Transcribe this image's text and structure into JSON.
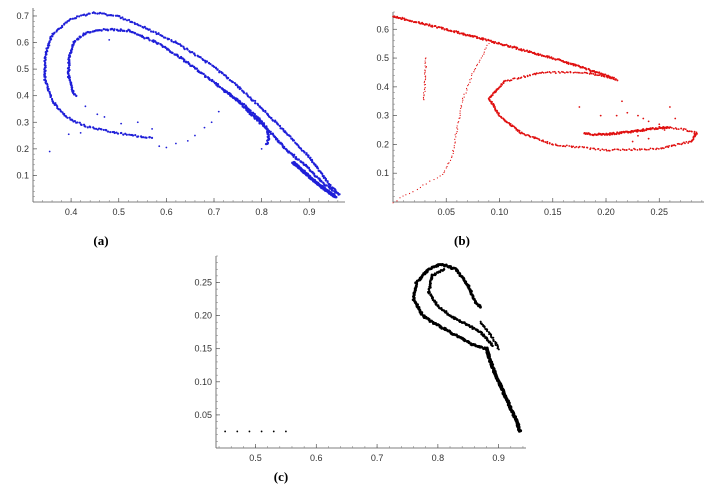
{
  "chart_data": [
    {
      "type": "scatter",
      "panel_label": "(a)",
      "title": "",
      "xlabel": "",
      "ylabel": "",
      "color": "#1f1fd8",
      "xlim": [
        0.32,
        0.975
      ],
      "ylim": [
        0.0,
        0.73
      ],
      "x_ticks": [
        0.4,
        0.5,
        0.6,
        0.7,
        0.8,
        0.9
      ],
      "x_tick_labels": [
        "0.4",
        "0.5",
        "0.6",
        "0.7",
        "0.8",
        "0.9"
      ],
      "y_ticks": [
        0.1,
        0.2,
        0.3,
        0.4,
        0.5,
        0.6,
        0.7
      ],
      "y_tick_labels": [
        "0.1",
        "0.2",
        "0.3",
        "0.4",
        "0.5",
        "0.6",
        "0.7"
      ],
      "grid": false,
      "curves": [
        {
          "points": [
            [
              0.963,
              0.028
            ],
            [
              0.94,
              0.07
            ],
            [
              0.9,
              0.17
            ],
            [
              0.83,
              0.3
            ],
            [
              0.76,
              0.42
            ],
            [
              0.7,
              0.51
            ],
            [
              0.62,
              0.6
            ],
            [
              0.55,
              0.66
            ],
            [
              0.5,
              0.698
            ],
            [
              0.45,
              0.712
            ],
            [
              0.4,
              0.69
            ],
            [
              0.36,
              0.63
            ],
            [
              0.345,
              0.55
            ],
            [
              0.345,
              0.46
            ],
            [
              0.36,
              0.38
            ],
            [
              0.39,
              0.32
            ],
            [
              0.43,
              0.285
            ],
            [
              0.48,
              0.265
            ],
            [
              0.53,
              0.25
            ],
            [
              0.57,
              0.24
            ]
          ],
          "n": 420,
          "size": 1.1
        },
        {
          "points": [
            [
              0.96,
              0.03
            ],
            [
              0.93,
              0.07
            ],
            [
              0.89,
              0.14
            ],
            [
              0.85,
              0.2
            ],
            [
              0.82,
              0.26
            ],
            [
              0.79,
              0.31
            ],
            [
              0.75,
              0.38
            ],
            [
              0.7,
              0.45
            ],
            [
              0.64,
              0.53
            ],
            [
              0.58,
              0.6
            ],
            [
              0.52,
              0.645
            ],
            [
              0.47,
              0.65
            ],
            [
              0.43,
              0.635
            ],
            [
              0.405,
              0.6
            ],
            [
              0.395,
              0.54
            ],
            [
              0.395,
              0.47
            ],
            [
              0.405,
              0.41
            ],
            [
              0.41,
              0.4
            ]
          ],
          "n": 320,
          "size": 1.2
        },
        {
          "points": [
            [
              0.72,
              0.42
            ],
            [
              0.76,
              0.37
            ],
            [
              0.79,
              0.32
            ],
            [
              0.81,
              0.28
            ],
            [
              0.815,
              0.24
            ],
            [
              0.81,
              0.215
            ]
          ],
          "n": 70,
          "size": 1.2
        },
        {
          "points": [
            [
              0.955,
              0.02
            ],
            [
              0.935,
              0.045
            ],
            [
              0.91,
              0.08
            ],
            [
              0.885,
              0.12
            ],
            [
              0.865,
              0.15
            ]
          ],
          "n": 220,
          "size": 1.3
        }
      ],
      "points": [
        [
          0.355,
          0.19
        ],
        [
          0.43,
          0.36
        ],
        [
          0.455,
          0.33
        ],
        [
          0.47,
          0.32
        ],
        [
          0.48,
          0.61
        ],
        [
          0.505,
          0.295
        ],
        [
          0.54,
          0.3
        ],
        [
          0.57,
          0.275
        ],
        [
          0.585,
          0.21
        ],
        [
          0.6,
          0.205
        ],
        [
          0.62,
          0.22
        ],
        [
          0.645,
          0.23
        ],
        [
          0.66,
          0.25
        ],
        [
          0.68,
          0.28
        ],
        [
          0.695,
          0.3
        ],
        [
          0.71,
          0.34
        ],
        [
          0.8,
          0.2
        ],
        [
          0.42,
          0.26
        ],
        [
          0.395,
          0.255
        ]
      ]
    },
    {
      "type": "scatter",
      "panel_label": "(b)",
      "title": "",
      "xlabel": "",
      "ylabel": "",
      "color": "#e01010",
      "xlim": [
        0.0,
        0.292
      ],
      "ylim": [
        0.0,
        0.66
      ],
      "x_ticks": [
        0.05,
        0.1,
        0.15,
        0.2,
        0.25
      ],
      "x_tick_labels": [
        "0.05",
        "0.10",
        "0.15",
        "0.20",
        "0.25"
      ],
      "y_ticks": [
        0.1,
        0.2,
        0.3,
        0.4,
        0.5,
        0.6
      ],
      "y_tick_labels": [
        "0.1",
        "0.2",
        "0.3",
        "0.4",
        "0.5",
        "0.6"
      ],
      "grid": false,
      "curves": [
        {
          "points": [
            [
              0.0,
              0.645
            ],
            [
              0.05,
              0.6
            ],
            [
              0.1,
              0.55
            ],
            [
              0.15,
              0.5
            ],
            [
              0.2,
              0.44
            ],
            [
              0.21,
              0.425
            ]
          ],
          "n": 260,
          "size": 1.0
        },
        {
          "points": [
            [
              0.207,
              0.43
            ],
            [
              0.18,
              0.45
            ],
            [
              0.14,
              0.45
            ],
            [
              0.105,
              0.42
            ],
            [
              0.09,
              0.36
            ],
            [
              0.1,
              0.3
            ],
            [
              0.12,
              0.24
            ],
            [
              0.15,
              0.2
            ],
            [
              0.2,
              0.18
            ],
            [
              0.25,
              0.185
            ],
            [
              0.28,
              0.21
            ],
            [
              0.285,
              0.24
            ],
            [
              0.27,
              0.255
            ],
            [
              0.25,
              0.26
            ]
          ],
          "n": 360,
          "size": 0.9
        },
        {
          "points": [
            [
              0.26,
              0.26
            ],
            [
              0.245,
              0.255
            ],
            [
              0.225,
              0.245
            ],
            [
              0.2,
              0.235
            ],
            [
              0.185,
              0.235
            ],
            [
              0.18,
              0.24
            ]
          ],
          "n": 90,
          "size": 1.1
        },
        {
          "points": [
            [
              0.0,
              0.0
            ],
            [
              0.02,
              0.04
            ],
            [
              0.045,
              0.09
            ],
            [
              0.055,
              0.15
            ],
            [
              0.06,
              0.25
            ],
            [
              0.065,
              0.35
            ],
            [
              0.075,
              0.45
            ],
            [
              0.09,
              0.55
            ]
          ],
          "n": 80,
          "size": 0.6
        },
        {
          "points": [
            [
              0.029,
              0.355
            ],
            [
              0.03,
              0.42
            ],
            [
              0.031,
              0.5
            ]
          ],
          "n": 30,
          "size": 0.6
        }
      ],
      "points": [
        [
          0.21,
          0.3
        ],
        [
          0.215,
          0.35
        ],
        [
          0.22,
          0.31
        ],
        [
          0.23,
          0.3
        ],
        [
          0.235,
          0.29
        ],
        [
          0.24,
          0.28
        ],
        [
          0.25,
          0.27
        ],
        [
          0.255,
          0.25
        ],
        [
          0.26,
          0.33
        ],
        [
          0.265,
          0.29
        ],
        [
          0.225,
          0.21
        ],
        [
          0.23,
          0.23
        ],
        [
          0.24,
          0.22
        ],
        [
          0.195,
          0.3
        ],
        [
          0.175,
          0.33
        ]
      ]
    },
    {
      "type": "scatter",
      "panel_label": "(c)",
      "title": "",
      "xlabel": "",
      "ylabel": "",
      "color": "#000000",
      "xlim": [
        0.435,
        0.945
      ],
      "ylim": [
        0.0,
        0.29
      ],
      "x_ticks": [
        0.5,
        0.6,
        0.7,
        0.8,
        0.9
      ],
      "x_tick_labels": [
        "0.5",
        "0.6",
        "0.7",
        "0.8",
        "0.9"
      ],
      "y_ticks": [
        0.05,
        0.1,
        0.15,
        0.2,
        0.25
      ],
      "y_tick_labels": [
        "0.05",
        "0.10",
        "0.15",
        "0.20",
        "0.25"
      ],
      "grid": false,
      "curves": [
        {
          "points": [
            [
              0.935,
              0.025
            ],
            [
              0.93,
              0.04
            ],
            [
              0.92,
              0.06
            ],
            [
              0.905,
              0.09
            ],
            [
              0.895,
              0.11
            ],
            [
              0.885,
              0.135
            ],
            [
              0.88,
              0.15
            ]
          ],
          "n": 200,
          "size": 1.5
        },
        {
          "points": [
            [
              0.88,
              0.15
            ],
            [
              0.86,
              0.155
            ],
            [
              0.83,
              0.17
            ],
            [
              0.8,
              0.185
            ],
            [
              0.775,
              0.2
            ],
            [
              0.76,
              0.225
            ],
            [
              0.765,
              0.25
            ],
            [
              0.785,
              0.27
            ],
            [
              0.805,
              0.278
            ],
            [
              0.83,
              0.27
            ],
            [
              0.85,
              0.245
            ],
            [
              0.862,
              0.22
            ],
            [
              0.87,
              0.212
            ]
          ],
          "n": 230,
          "size": 1.4
        },
        {
          "points": [
            [
              0.89,
              0.155
            ],
            [
              0.87,
              0.175
            ],
            [
              0.85,
              0.185
            ],
            [
              0.82,
              0.2
            ],
            [
              0.8,
              0.215
            ],
            [
              0.785,
              0.235
            ],
            [
              0.79,
              0.26
            ],
            [
              0.81,
              0.27
            ]
          ],
          "n": 150,
          "size": 1.2
        },
        {
          "points": [
            [
              0.9,
              0.15
            ],
            [
              0.888,
              0.17
            ],
            [
              0.87,
              0.19
            ]
          ],
          "n": 40,
          "size": 1.0
        }
      ],
      "points": [
        [
          0.45,
          0.025
        ],
        [
          0.47,
          0.025
        ],
        [
          0.49,
          0.025
        ],
        [
          0.51,
          0.025
        ],
        [
          0.53,
          0.025
        ],
        [
          0.55,
          0.025
        ]
      ]
    }
  ]
}
